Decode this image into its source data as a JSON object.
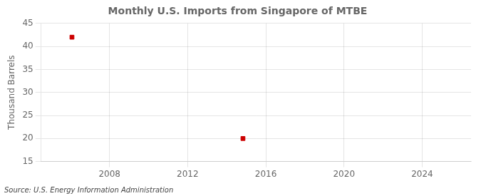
{
  "chart_data": {
    "type": "scatter",
    "title": "Monthly U.S. Imports from Singapore of MTBE",
    "ylabel": "Thousand Barrels",
    "annotations": [
      "Source: U.S. Energy Information Administration"
    ],
    "x": [
      2006.08,
      2014.83
    ],
    "values": [
      42,
      20
    ],
    "color": "#cc0000",
    "marker": "square",
    "xlim": [
      2004.5,
      2026.5
    ],
    "ylim": [
      15,
      45
    ],
    "xticks": [
      2008,
      2012,
      2016,
      2020,
      2024
    ],
    "yticks": [
      15,
      20,
      25,
      30,
      35,
      40,
      45
    ],
    "grid": true
  }
}
